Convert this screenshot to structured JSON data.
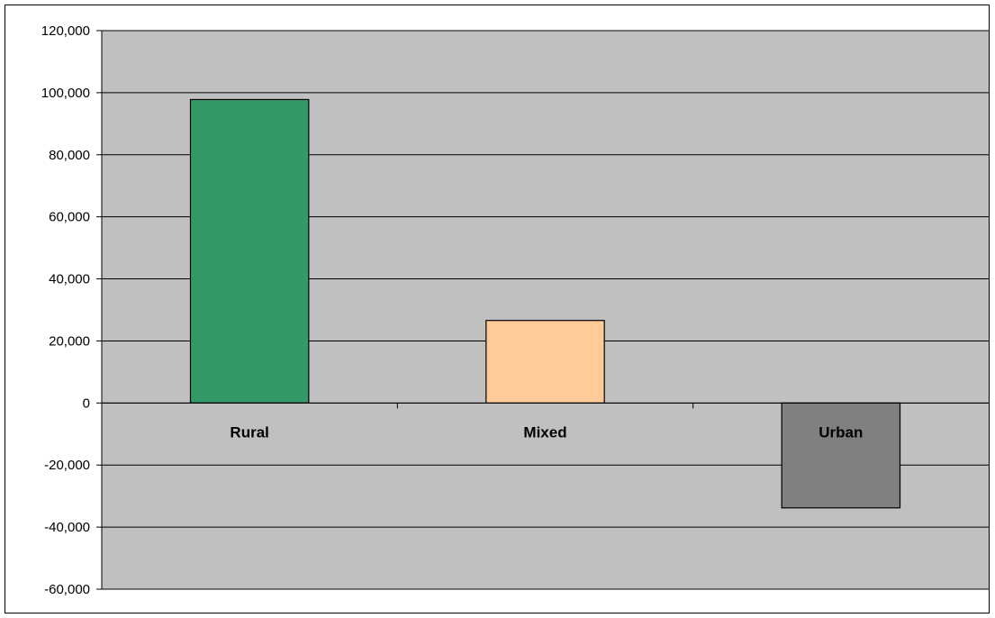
{
  "chart_data": {
    "type": "bar",
    "title": "",
    "xlabel": "",
    "ylabel": "",
    "categories": [
      "Rural",
      "Mixed",
      "Urban"
    ],
    "values": [
      97800,
      26600,
      -33800
    ],
    "colors": [
      "#339966",
      "#FFCC99",
      "#808080"
    ],
    "ylim": [
      -60000,
      120000
    ],
    "yticks": [
      {
        "value": 120000,
        "label": "120,000"
      },
      {
        "value": 100000,
        "label": "100,000"
      },
      {
        "value": 80000,
        "label": "80,000"
      },
      {
        "value": 60000,
        "label": "60,000"
      },
      {
        "value": 40000,
        "label": "40,000"
      },
      {
        "value": 20000,
        "label": "20,000"
      },
      {
        "value": 0,
        "label": "0"
      },
      {
        "value": -20000,
        "label": "-20,000"
      },
      {
        "value": -40000,
        "label": "-40,000"
      },
      {
        "value": -60000,
        "label": "-60,000"
      }
    ],
    "grid": true,
    "plot_background": "#C0C0C0",
    "legend": "none"
  }
}
